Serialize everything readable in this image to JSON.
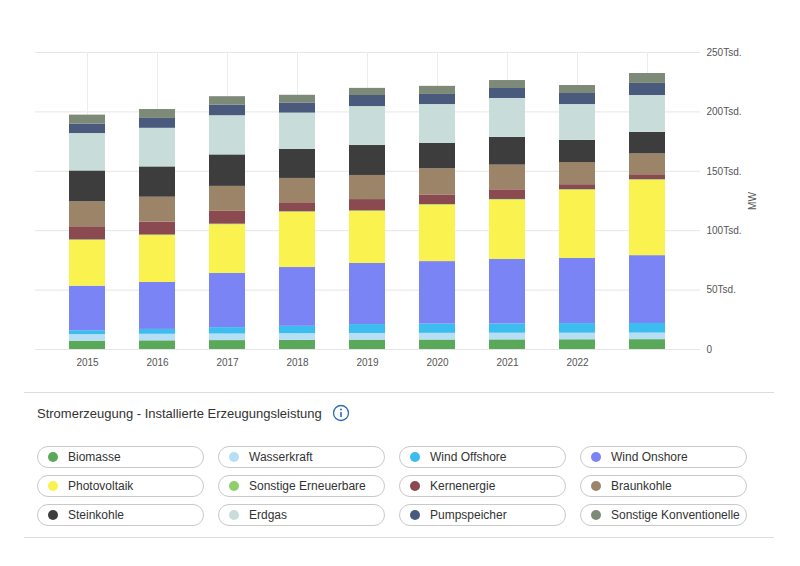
{
  "chart_data": {
    "type": "bar",
    "title": "Stromerzeugung - Installierte Erzeugungsleistung",
    "y_label": "MW",
    "categories": [
      "2015",
      "2016",
      "2017",
      "2018",
      "2019",
      "2020",
      "2021",
      "2022",
      null
    ],
    "series": [
      {
        "name": "Biomasse",
        "color": "#5aa85a",
        "values": [
          7000,
          7300,
          7500,
          7700,
          7900,
          8000,
          8100,
          8200,
          8300
        ]
      },
      {
        "name": "Wasserkraft",
        "color": "#b6dff5",
        "values": [
          5500,
          5500,
          5500,
          5600,
          5600,
          5600,
          5600,
          5500,
          5500
        ]
      },
      {
        "name": "Wind Offshore",
        "color": "#3cbdf0",
        "values": [
          3300,
          4100,
          5400,
          6200,
          7500,
          7800,
          7800,
          8100,
          8100
        ]
      },
      {
        "name": "Wind Onshore",
        "color": "#7b84f5",
        "values": [
          37500,
          39500,
          45600,
          49500,
          51400,
          52600,
          54300,
          54800,
          57100
        ]
      },
      {
        "name": "Photovoltaik",
        "color": "#f9f24f",
        "values": [
          38500,
          39500,
          41000,
          46500,
          43800,
          47500,
          50000,
          57500,
          63500
        ]
      },
      {
        "name": "Sonstige Erneuerbare",
        "color": "#8dd06a",
        "values": [
          500,
          500,
          500,
          500,
          500,
          500,
          500,
          500,
          500
        ]
      },
      {
        "name": "Kernenergie",
        "color": "#8a4a50",
        "values": [
          11000,
          10800,
          10800,
          7500,
          9500,
          8100,
          8100,
          4100,
          4100
        ]
      },
      {
        "name": "Braunkohle",
        "color": "#9b8467",
        "values": [
          21000,
          21000,
          21000,
          20500,
          20300,
          22000,
          20800,
          18700,
          17500
        ]
      },
      {
        "name": "Steinkohle",
        "color": "#3d3d3d",
        "values": [
          26000,
          25500,
          26500,
          24500,
          25200,
          21300,
          23300,
          18600,
          18100
        ]
      },
      {
        "name": "Erdgas",
        "color": "#c8ddd9",
        "values": [
          31500,
          32500,
          33000,
          30500,
          32800,
          32800,
          32800,
          30200,
          31100
        ]
      },
      {
        "name": "Pumpspeicher",
        "color": "#4a5a7d",
        "values": [
          8000,
          8300,
          9000,
          8500,
          9300,
          8500,
          8400,
          9300,
          10200
        ]
      },
      {
        "name": "Sonstige Konventionelle",
        "color": "#7d8a78",
        "values": [
          7500,
          7500,
          7000,
          6500,
          6000,
          6800,
          6700,
          6700,
          8300
        ]
      }
    ],
    "ylim": [
      0,
      250000
    ],
    "yticks": [
      0,
      {
        "value": 50000,
        "label": "50Tsd."
      },
      {
        "value": 100000,
        "label": "100Tsd."
      },
      {
        "value": 150000,
        "label": "150Tsd."
      },
      {
        "value": 200000,
        "label": "200Tsd."
      },
      {
        "value": 250000,
        "label": "250Tsd."
      }
    ],
    "stacked": true,
    "grid": true,
    "legend": "bottom"
  }
}
